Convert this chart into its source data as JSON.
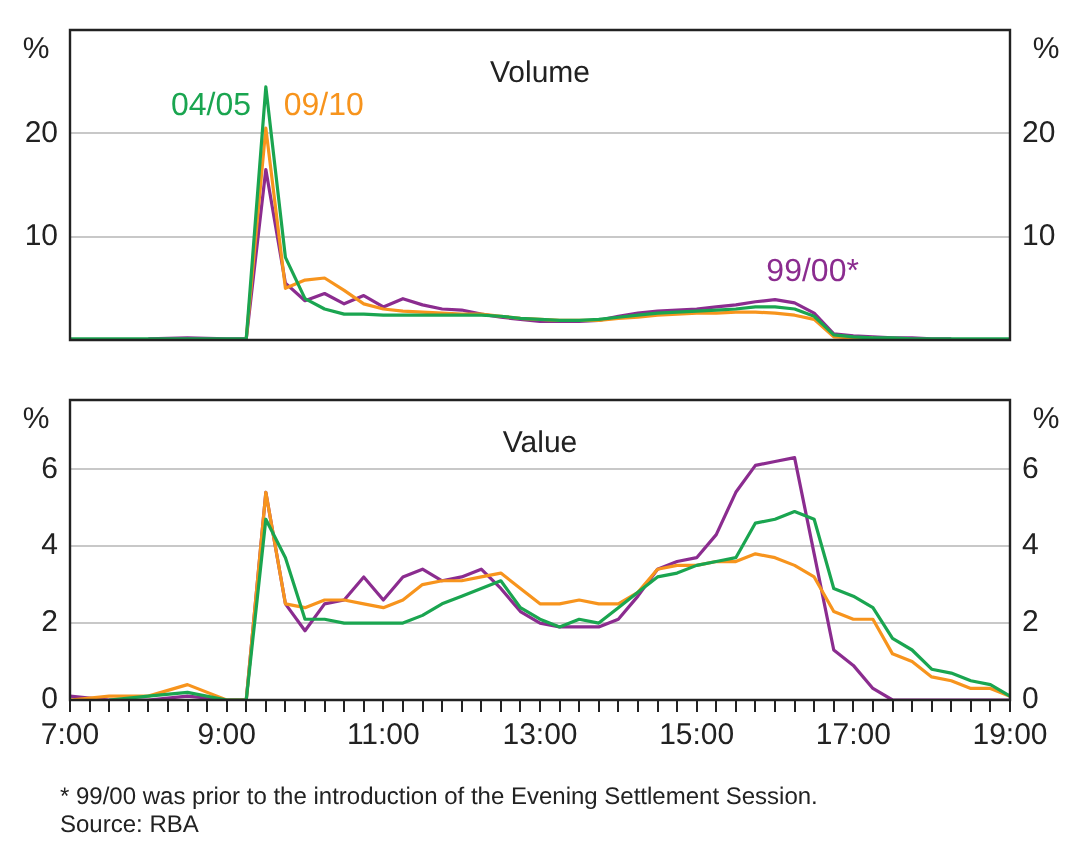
{
  "chart_data": [
    {
      "type": "line",
      "title": "Volume",
      "ylabel": "%",
      "y2label": "%",
      "legend": false,
      "grid": "y",
      "tick_labels": "y",
      "marker": "none",
      "line_style": "solid",
      "xlim": [
        7,
        19
      ],
      "ylim": [
        0,
        30
      ],
      "yticks": [
        10,
        20
      ],
      "y2lim": [
        0,
        30
      ],
      "y2ticks": [
        10,
        20
      ],
      "x": [
        7,
        7.5,
        8,
        8.5,
        9,
        9.25,
        9.5,
        9.75,
        10,
        10.25,
        10.5,
        10.75,
        11,
        11.25,
        11.5,
        11.75,
        12,
        12.25,
        12.5,
        12.75,
        13,
        13.25,
        13.5,
        13.75,
        14,
        14.25,
        14.5,
        14.75,
        15,
        15.25,
        15.5,
        15.75,
        16,
        16.25,
        16.5,
        16.75,
        17,
        17.25,
        17.5,
        17.75,
        18,
        18.25,
        18.5,
        18.75,
        19
      ],
      "series": [
        {
          "name": "04/05",
          "color": "#1aa550",
          "values": [
            0.1,
            0.1,
            0.1,
            0.1,
            0.1,
            0.1,
            24.5,
            8,
            4,
            3,
            2.5,
            2.5,
            2.4,
            2.4,
            2.4,
            2.4,
            2.4,
            2.4,
            2.3,
            2.1,
            2,
            1.9,
            1.9,
            2,
            2.2,
            2.4,
            2.6,
            2.7,
            2.8,
            2.9,
            3,
            3.2,
            3.2,
            3,
            2.3,
            0.5,
            0.3,
            0.2,
            0.2,
            0.1,
            0.1,
            0.1,
            0.1,
            0.1,
            0.1
          ]
        },
        {
          "name": "09/10",
          "color": "#f7941d",
          "values": [
            null,
            null,
            null,
            null,
            null,
            0.1,
            20.5,
            5,
            5.8,
            6,
            4.8,
            3.5,
            3,
            2.8,
            2.7,
            2.6,
            2.5,
            2.5,
            2.3,
            2.1,
            2,
            1.9,
            1.9,
            1.9,
            2.1,
            2.2,
            2.4,
            2.5,
            2.6,
            2.6,
            2.7,
            2.7,
            2.6,
            2.4,
            2,
            0.3,
            0.2,
            0.2,
            null,
            null,
            null,
            null,
            null,
            null,
            null
          ]
        },
        {
          "name": "99/00*",
          "color": "#8b2c8f",
          "values": [
            null,
            null,
            0.1,
            0.2,
            0.1,
            0.1,
            16.5,
            5.5,
            3.8,
            4.5,
            3.5,
            4.3,
            3.2,
            4,
            3.4,
            3,
            2.9,
            2.5,
            2.2,
            2,
            1.8,
            1.8,
            1.8,
            1.9,
            2.3,
            2.6,
            2.8,
            2.9,
            3,
            3.2,
            3.4,
            3.7,
            3.9,
            3.6,
            2.6,
            0.6,
            0.4,
            0.3,
            0.2,
            0.2,
            0.1,
            0.1,
            null,
            null,
            null
          ]
        }
      ]
    },
    {
      "type": "line",
      "title": "Value",
      "ylabel": "%",
      "y2label": "%",
      "legend": false,
      "grid": "y",
      "marker": "none",
      "line_style": "solid",
      "xlim": [
        7,
        19
      ],
      "xticks": [
        {
          "value": 7,
          "label": "7:00"
        },
        {
          "value": 7.25,
          "label": null
        },
        {
          "value": 7.5,
          "label": null
        },
        {
          "value": 7.75,
          "label": null
        },
        {
          "value": 8,
          "label": null
        },
        {
          "value": 8.25,
          "label": null
        },
        {
          "value": 8.5,
          "label": null
        },
        {
          "value": 8.75,
          "label": null
        },
        {
          "value": 9,
          "label": "9:00"
        },
        {
          "value": 9.25,
          "label": null
        },
        {
          "value": 9.5,
          "label": null
        },
        {
          "value": 9.75,
          "label": null
        },
        {
          "value": 10,
          "label": null
        },
        {
          "value": 10.25,
          "label": null
        },
        {
          "value": 10.5,
          "label": null
        },
        {
          "value": 10.75,
          "label": null
        },
        {
          "value": 11,
          "label": "11:00"
        },
        {
          "value": 11.25,
          "label": null
        },
        {
          "value": 11.5,
          "label": null
        },
        {
          "value": 11.75,
          "label": null
        },
        {
          "value": 12,
          "label": null
        },
        {
          "value": 12.25,
          "label": null
        },
        {
          "value": 12.5,
          "label": null
        },
        {
          "value": 12.75,
          "label": null
        },
        {
          "value": 13,
          "label": "13:00"
        },
        {
          "value": 13.25,
          "label": null
        },
        {
          "value": 13.5,
          "label": null
        },
        {
          "value": 13.75,
          "label": null
        },
        {
          "value": 14,
          "label": null
        },
        {
          "value": 14.25,
          "label": null
        },
        {
          "value": 14.5,
          "label": null
        },
        {
          "value": 14.75,
          "label": null
        },
        {
          "value": 15,
          "label": "15:00"
        },
        {
          "value": 15.25,
          "label": null
        },
        {
          "value": 15.5,
          "label": null
        },
        {
          "value": 15.75,
          "label": null
        },
        {
          "value": 16,
          "label": null
        },
        {
          "value": 16.25,
          "label": null
        },
        {
          "value": 16.5,
          "label": null
        },
        {
          "value": 16.75,
          "label": null
        },
        {
          "value": 17,
          "label": "17:00"
        },
        {
          "value": 17.25,
          "label": null
        },
        {
          "value": 17.5,
          "label": null
        },
        {
          "value": 17.75,
          "label": null
        },
        {
          "value": 18,
          "label": null
        },
        {
          "value": 18.25,
          "label": null
        },
        {
          "value": 18.5,
          "label": null
        },
        {
          "value": 18.75,
          "label": null
        },
        {
          "value": 19,
          "label": "19:00"
        }
      ],
      "ylim": [
        0,
        7.8
      ],
      "yticks": [
        0,
        2,
        4,
        6
      ],
      "y2lim": [
        0,
        7.8
      ],
      "y2ticks": [
        0,
        2,
        4,
        6
      ],
      "annotations": [
        "*   99/00 was prior to the introduction of the Evening Settlement Session.",
        "Source: RBA"
      ],
      "x": [
        7,
        7.5,
        8,
        8.5,
        9,
        9.25,
        9.5,
        9.75,
        10,
        10.25,
        10.5,
        10.75,
        11,
        11.25,
        11.5,
        11.75,
        12,
        12.25,
        12.5,
        12.75,
        13,
        13.25,
        13.5,
        13.75,
        14,
        14.25,
        14.5,
        14.75,
        15,
        15.25,
        15.5,
        15.75,
        16,
        16.25,
        16.5,
        16.75,
        17,
        17.25,
        17.5,
        17.75,
        18,
        18.25,
        18.5,
        18.75,
        19
      ],
      "series": [
        {
          "color": "#1aa550",
          "values": [
            null,
            0,
            0.1,
            0.2,
            0,
            0,
            4.7,
            3.7,
            2.1,
            2.1,
            2.0,
            2.0,
            2.0,
            2.0,
            2.2,
            2.5,
            2.7,
            2.9,
            3.1,
            2.4,
            2.1,
            1.9,
            2.1,
            2.0,
            2.4,
            2.8,
            3.2,
            3.3,
            3.5,
            3.6,
            3.7,
            4.6,
            4.7,
            4.9,
            4.7,
            2.9,
            2.7,
            2.4,
            1.6,
            1.3,
            0.8,
            0.7,
            0.5,
            0.4,
            0.1
          ]
        },
        {
          "color": "#f7941d",
          "values": [
            0,
            0.1,
            0.1,
            0.4,
            0,
            0,
            5.4,
            2.5,
            2.4,
            2.6,
            2.6,
            2.5,
            2.4,
            2.6,
            3.0,
            3.1,
            3.1,
            3.2,
            3.3,
            2.9,
            2.5,
            2.5,
            2.6,
            2.5,
            2.5,
            2.8,
            3.4,
            3.5,
            3.5,
            3.6,
            3.6,
            3.8,
            3.7,
            3.5,
            3.2,
            2.3,
            2.1,
            2.1,
            1.2,
            1.0,
            0.6,
            0.5,
            0.3,
            0.3,
            0.1
          ]
        },
        {
          "color": "#8b2c8f",
          "values": [
            0.1,
            0,
            0,
            0.1,
            0,
            0,
            5.4,
            2.5,
            1.8,
            2.5,
            2.6,
            3.2,
            2.6,
            3.2,
            3.4,
            3.1,
            3.2,
            3.4,
            2.9,
            2.3,
            2.0,
            1.9,
            1.9,
            1.9,
            2.1,
            2.7,
            3.4,
            3.6,
            3.7,
            4.3,
            5.4,
            6.1,
            6.2,
            6.3,
            3.8,
            1.3,
            0.9,
            0.3,
            0,
            0,
            0,
            0,
            0,
            0,
            0
          ]
        }
      ]
    }
  ]
}
